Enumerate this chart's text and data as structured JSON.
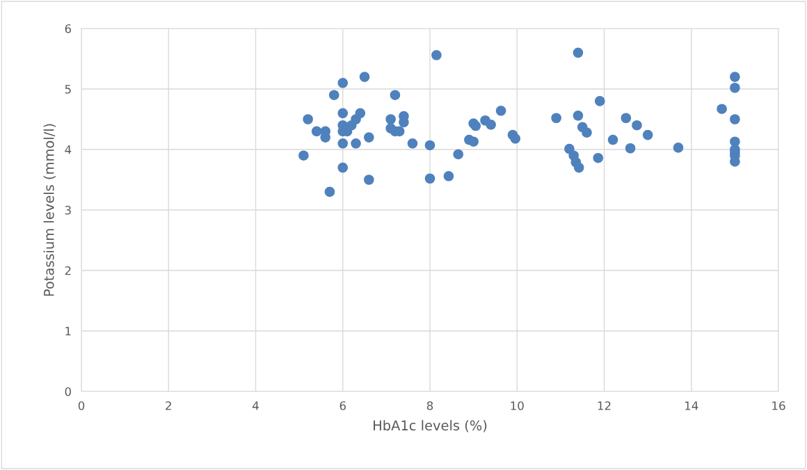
{
  "chart_data": {
    "type": "scatter",
    "xlabel": "HbA1c levels (%)",
    "ylabel": "Potassium levels (mmol/l)",
    "xlim": [
      0,
      16
    ],
    "xticks": [
      0,
      2,
      4,
      6,
      8,
      10,
      12,
      14,
      16
    ],
    "ylim": [
      0,
      6
    ],
    "yticks": [
      0,
      1,
      2,
      3,
      4,
      5,
      6
    ],
    "grid": true,
    "marker": "circle",
    "series": [
      {
        "color": "#4f81bd",
        "x": [
          5.1,
          5.2,
          5.4,
          5.6,
          5.6,
          5.7,
          5.8,
          6.0,
          6.0,
          6.0,
          6.0,
          6.0,
          6.0,
          6.1,
          6.2,
          6.3,
          6.3,
          6.4,
          6.5,
          6.6,
          6.6,
          7.1,
          7.1,
          7.2,
          7.2,
          7.3,
          7.4,
          7.4,
          7.6,
          8.0,
          8.0,
          8.15,
          8.43,
          8.65,
          8.9,
          9.0,
          9.0,
          9.05,
          9.27,
          9.4,
          9.63,
          9.9,
          9.96,
          10.9,
          11.2,
          11.3,
          11.35,
          11.42,
          11.4,
          11.4,
          11.5,
          11.6,
          11.86,
          11.9,
          12.2,
          12.5,
          12.6,
          12.75,
          13.0,
          13.7,
          14.7,
          15,
          15,
          15,
          15,
          15,
          15,
          15,
          15
        ],
        "values": [
          3.9,
          4.5,
          4.3,
          4.3,
          4.2,
          3.3,
          4.9,
          5.1,
          4.6,
          4.4,
          4.3,
          4.1,
          3.7,
          4.3,
          4.4,
          4.5,
          4.1,
          4.6,
          5.2,
          4.2,
          3.5,
          4.5,
          4.35,
          4.9,
          4.3,
          4.3,
          4.55,
          4.45,
          4.1,
          4.07,
          3.52,
          5.56,
          3.56,
          3.92,
          4.16,
          4.13,
          4.43,
          4.39,
          4.48,
          4.41,
          4.64,
          4.24,
          4.18,
          4.52,
          4.01,
          3.9,
          3.79,
          3.7,
          5.6,
          4.56,
          4.37,
          4.28,
          3.86,
          4.8,
          4.16,
          4.52,
          4.02,
          4.4,
          4.24,
          4.03,
          4.67,
          5.2,
          5.02,
          4.5,
          4.13,
          4.0,
          3.95,
          3.9,
          3.8
        ]
      }
    ]
  }
}
